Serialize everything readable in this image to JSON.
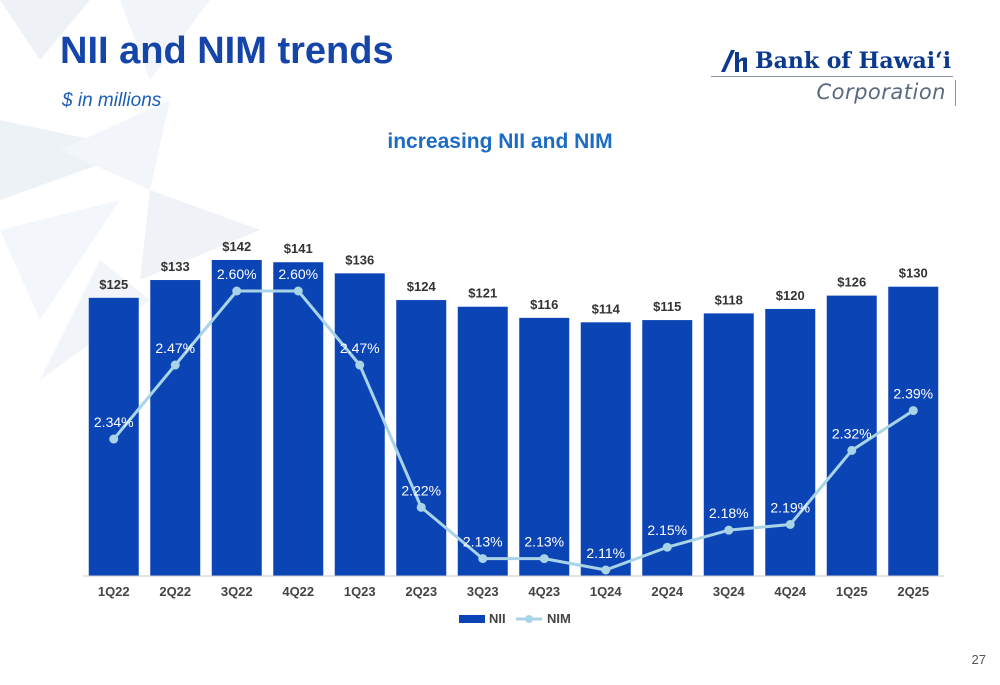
{
  "header": {
    "title": "NII and NIM trends",
    "subtitle": "$ in millions"
  },
  "logo": {
    "name": "Bank of Hawai‘i",
    "sub": "Corporation"
  },
  "page_number": "27",
  "colors": {
    "title": "#1545a8",
    "bar": "#0b45b5",
    "line": "#a9d3e6",
    "chart_title": "#1c6cc4"
  },
  "chart_data": {
    "type": "bar",
    "title": "increasing NII and NIM",
    "categories": [
      "1Q22",
      "2Q22",
      "3Q22",
      "4Q22",
      "1Q23",
      "2Q23",
      "3Q23",
      "4Q23",
      "1Q24",
      "2Q24",
      "3Q24",
      "4Q24",
      "1Q25",
      "2Q25"
    ],
    "series": [
      {
        "name": "NII",
        "type": "bar",
        "values": [
          125,
          133,
          142,
          141,
          136,
          124,
          121,
          116,
          114,
          115,
          118,
          120,
          126,
          130
        ],
        "labels": [
          "$125",
          "$133",
          "$142",
          "$141",
          "$136",
          "$124",
          "$121",
          "$116",
          "$114",
          "$115",
          "$118",
          "$120",
          "$126",
          "$130"
        ]
      },
      {
        "name": "NIM",
        "type": "line",
        "values": [
          2.34,
          2.47,
          2.6,
          2.6,
          2.47,
          2.22,
          2.13,
          2.13,
          2.11,
          2.15,
          2.18,
          2.19,
          2.32,
          2.39
        ],
        "labels": [
          "2.34%",
          "2.47%",
          "2.60%",
          "2.60%",
          "2.47%",
          "2.22%",
          "2.13%",
          "2.13%",
          "2.11%",
          "2.15%",
          "2.18%",
          "2.19%",
          "2.32%",
          "2.39%"
        ]
      }
    ],
    "legend": [
      "NII",
      "NIM"
    ],
    "legend_position": "bottom",
    "grid": false
  }
}
